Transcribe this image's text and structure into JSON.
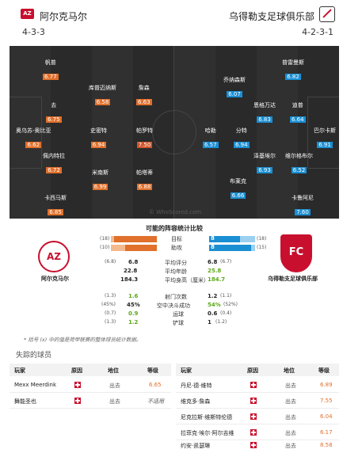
{
  "header": {
    "home_name": "阿尔克马尔",
    "home_formation": "4-3-3",
    "away_name": "乌得勒支足球俱乐部",
    "away_formation": "4-2-3-1",
    "home_logo_text": "AZ"
  },
  "pitch": {
    "watermark": "© WhoScored.com",
    "home_players": [
      {
        "name": "帆普",
        "rating": "6.77"
      },
      {
        "name": "库普迈纳斯",
        "rating": "6.58"
      },
      {
        "name": "詹森",
        "rating": "6.63"
      },
      {
        "name": "去",
        "rating": "6.75"
      },
      {
        "name": "奥乌苏-奥比亚",
        "rating": "6.62"
      },
      {
        "name": "史密特",
        "rating": "6.94"
      },
      {
        "name": "帕罗特",
        "rating": "7.50"
      },
      {
        "name": "佩内特拉",
        "rating": "6.72"
      },
      {
        "name": "米南斯",
        "rating": "6.99"
      },
      {
        "name": "帕塔蒂",
        "rating": "6.88"
      },
      {
        "name": "卡西马斯",
        "rating": "6.85"
      }
    ],
    "away_players": [
      {
        "name": "普雷曼斯",
        "rating": "6.82"
      },
      {
        "name": "乔纳森斯",
        "rating": "6.07"
      },
      {
        "name": "恩格万达",
        "rating": "6.83"
      },
      {
        "name": "迪普",
        "rating": "6.64"
      },
      {
        "name": "巴尔卡斯",
        "rating": "6.91"
      },
      {
        "name": "哈勒",
        "rating": "6.57"
      },
      {
        "name": "分特",
        "rating": "6.94"
      },
      {
        "name": "泽基埃尔",
        "rating": "6.93"
      },
      {
        "name": "维尔格布尔",
        "rating": "6.52"
      },
      {
        "name": "布莱克",
        "rating": "6.66"
      },
      {
        "name": "卡鲁阿尼",
        "rating": "7.60"
      }
    ]
  },
  "stats": {
    "title": "可能的阵容统计比较",
    "home_label": "阿尔克马尔",
    "away_label": "乌得勒支足球俱乐部",
    "away_crest_text": "FC",
    "goals": {
      "label": "目标",
      "home": "11",
      "away": "8",
      "home_avg": "(18)",
      "away_avg": "(18)",
      "home_fraction": 0.58,
      "away_fraction": 0.42
    },
    "assists": {
      "label": "助攻",
      "home": "6",
      "away": "8",
      "home_avg": "(10)",
      "away_avg": "(15)",
      "home_fraction": 0.43,
      "away_fraction": 0.57
    },
    "rows": [
      {
        "label": "平均评分",
        "home": "6.8",
        "away": "6.8",
        "home_sub": "(6.8)",
        "away_sub": "(6.7)"
      },
      {
        "label": "平均年龄",
        "home": "22.8",
        "away": "25.8",
        "home_sub": "",
        "away_sub": ""
      },
      {
        "label": "平均身高（厘米）",
        "home": "184.3",
        "away": "184.7",
        "home_sub": "",
        "away_sub": ""
      },
      {
        "label": "射门次数",
        "home": "1.6",
        "away": "1.2",
        "home_sub": "(1.3)",
        "away_sub": "(1.1)"
      },
      {
        "label": "空中决斗成功",
        "home": "45%",
        "away": "54%",
        "home_sub": "(45%)",
        "away_sub": "(52%)"
      },
      {
        "label": "运球",
        "home": "0.9",
        "away": "0.6",
        "home_sub": "(0.7)",
        "away_sub": "(0.4)"
      },
      {
        "label": "铲球",
        "home": "1.2",
        "away": "1",
        "home_sub": "(1.3)",
        "away_sub": "(1.2)"
      }
    ],
    "footnote": "* 括号 (x) 中的值是荷甲联赛的整体球员统计数据。"
  },
  "missing": {
    "title": "失踪的球员",
    "headers": {
      "player": "玩家",
      "reason": "原因",
      "status": "地位",
      "rating": "等级"
    },
    "home": [
      {
        "player": "Mexx Meerdink",
        "status": "出去",
        "rating": "6.65"
      },
      {
        "player": "舞能圣也",
        "status": "出去",
        "rating": "不适用"
      }
    ],
    "away": [
      {
        "player": "丹尼·德·维特",
        "status": "出去",
        "rating": "6.89"
      },
      {
        "player": "维克多·詹森",
        "status": "出去",
        "rating": "7.55"
      },
      {
        "player": "尼克拉斯·维斯特伦德",
        "status": "出去",
        "rating": "6.04"
      },
      {
        "player": "拉菲克·埃尔·阿尔吉维",
        "status": "出去",
        "rating": "6.17"
      },
      {
        "player": "约安·凯瑟琳",
        "status": "出去",
        "rating": "8.58"
      }
    ]
  }
}
